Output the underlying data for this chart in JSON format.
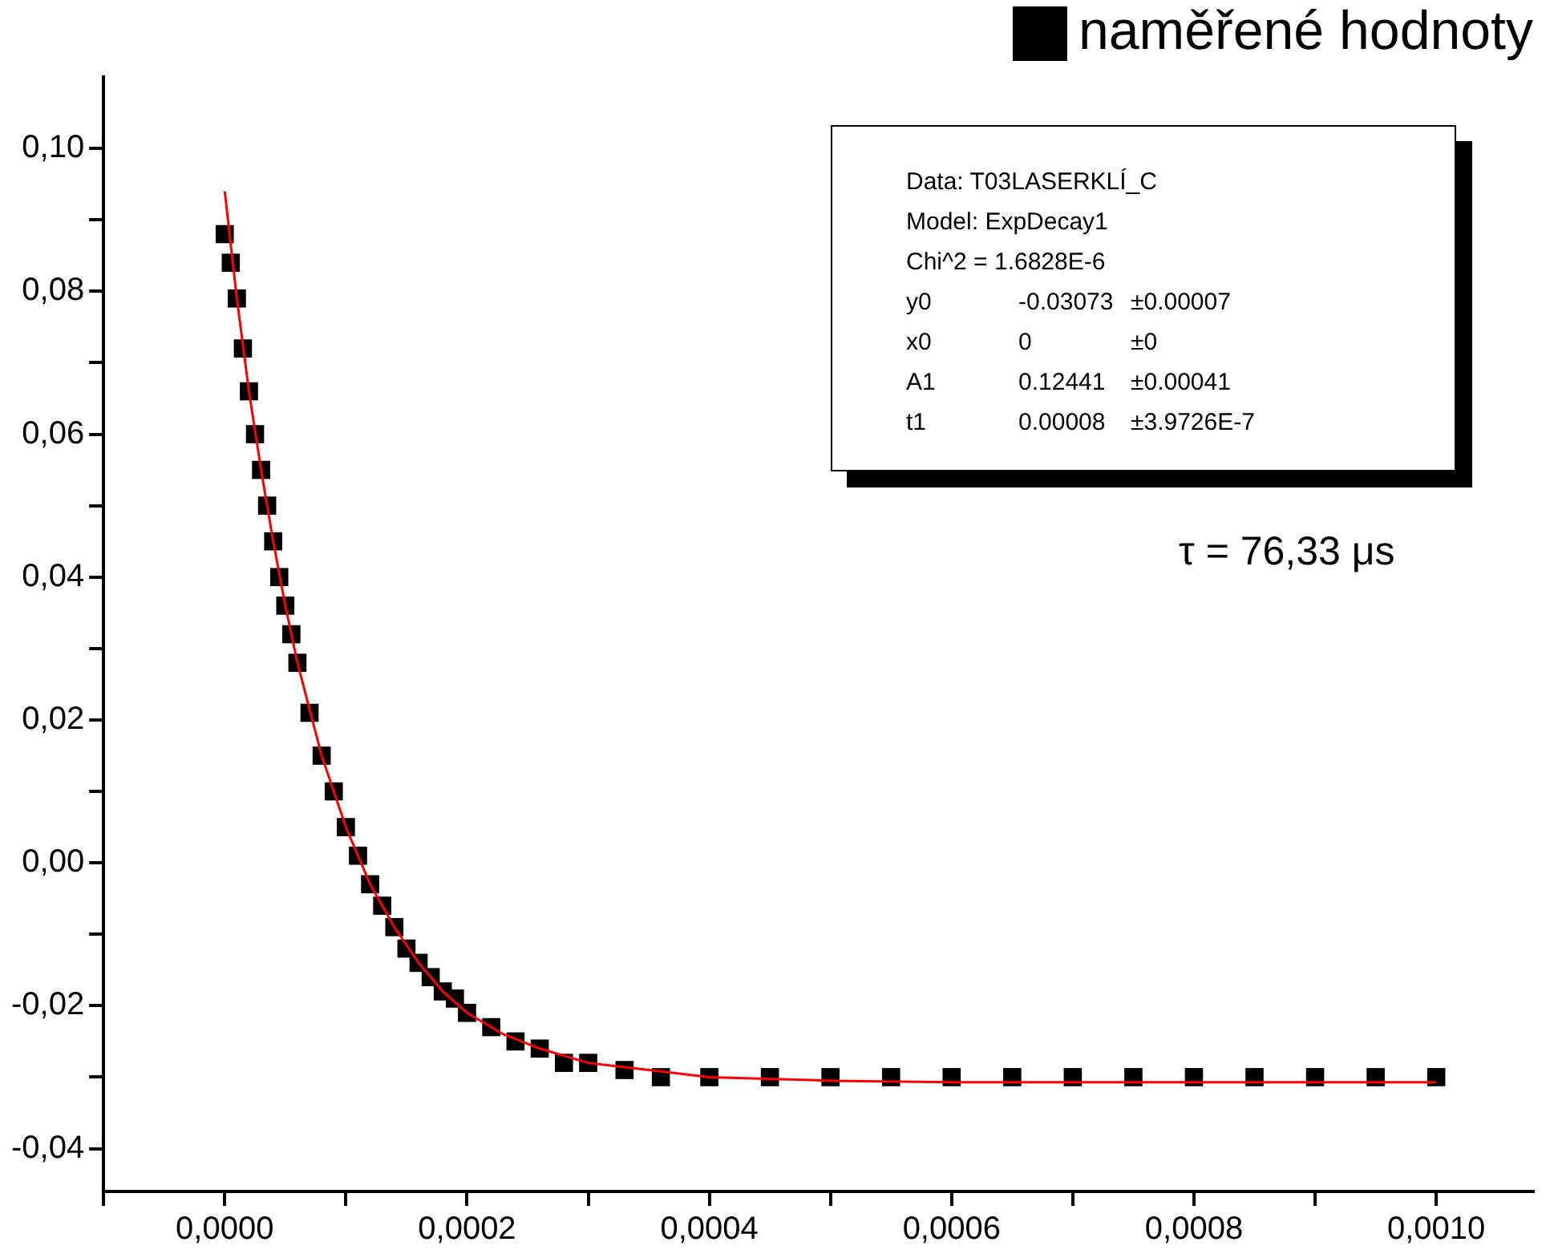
{
  "chart_data": {
    "type": "scatter",
    "legend": "top right",
    "marker": "square",
    "xlim": [
      -0.0001,
      0.00108
    ],
    "ylim": [
      -0.046,
      0.11
    ],
    "xticks": [
      {
        "value": -0.0001,
        "label": null
      },
      {
        "value": 0,
        "label": "0,0000"
      },
      {
        "value": 0.0001,
        "label": null
      },
      {
        "value": 0.0002,
        "label": "0,0002"
      },
      {
        "value": 0.0003,
        "label": null
      },
      {
        "value": 0.0004,
        "label": "0,0004"
      },
      {
        "value": 0.0005,
        "label": null
      },
      {
        "value": 0.0006,
        "label": "0,0006"
      },
      {
        "value": 0.0007,
        "label": null
      },
      {
        "value": 0.0008,
        "label": "0,0008"
      },
      {
        "value": 0.0009,
        "label": null
      },
      {
        "value": 0.001,
        "label": "0,0010"
      }
    ],
    "yticks": [
      {
        "value": -0.04,
        "label": "-0,04"
      },
      {
        "value": -0.03,
        "label": null
      },
      {
        "value": -0.02,
        "label": "-0,02"
      },
      {
        "value": -0.01,
        "label": null
      },
      {
        "value": 0,
        "label": "0,00"
      },
      {
        "value": 0.01,
        "label": null
      },
      {
        "value": 0.02,
        "label": "0,02"
      },
      {
        "value": 0.03,
        "label": null
      },
      {
        "value": 0.04,
        "label": "0,04"
      },
      {
        "value": 0.05,
        "label": null
      },
      {
        "value": 0.06,
        "label": "0,06"
      },
      {
        "value": 0.07,
        "label": null
      },
      {
        "value": 0.08,
        "label": "0,08"
      },
      {
        "value": 0.09,
        "label": null
      },
      {
        "value": 0.1,
        "label": "0,10"
      }
    ],
    "annotations": [
      "Data: T03LASERKLÍ_C",
      "Model: ExpDecay1",
      "Chi^2 = 1.6828E-6",
      "y0\t-0.03073\t±0.00007",
      "x0\t0\t±0",
      "A1\t0.12441\t±0.00041",
      "t1\t0.00008\t±3.9726E-7",
      "τ = 76,33 μs"
    ],
    "series": [
      {
        "name": "naměřené hodnoty",
        "color": "#000000",
        "x": [
          0,
          5e-06,
          1e-05,
          1.5e-05,
          2e-05,
          2.5e-05,
          3e-05,
          3.5e-05,
          4e-05,
          4.5e-05,
          5e-05,
          5.5e-05,
          6e-05,
          7e-05,
          8e-05,
          9e-05,
          0.0001,
          0.00011,
          0.00012,
          0.00013,
          0.00014,
          0.00015,
          0.00016,
          0.00017,
          0.00018,
          0.00019,
          0.0002,
          0.00022,
          0.00024,
          0.00026,
          0.00028,
          0.0003,
          0.00033,
          0.00036,
          0.0004,
          0.00045,
          0.0005,
          0.00055,
          0.0006,
          0.00065,
          0.0007,
          0.00075,
          0.0008,
          0.00085,
          0.0009,
          0.00095,
          0.001
        ],
        "values": [
          0.088,
          0.084,
          0.079,
          0.072,
          0.066,
          0.06,
          0.055,
          0.05,
          0.045,
          0.04,
          0.036,
          0.032,
          0.028,
          0.021,
          0.015,
          0.01,
          0.005,
          0.001,
          -0.003,
          -0.006,
          -0.009,
          -0.012,
          -0.014,
          -0.016,
          -0.018,
          -0.019,
          -0.021,
          -0.023,
          -0.025,
          -0.026,
          -0.028,
          -0.028,
          -0.029,
          -0.03,
          -0.03,
          -0.03,
          -0.03,
          -0.03,
          -0.03,
          -0.03,
          -0.03,
          -0.03,
          -0.03,
          -0.03,
          -0.03,
          -0.03,
          -0.03
        ]
      },
      {
        "type": "line",
        "marker": "none",
        "line_style": "solid",
        "color": "#ff0000",
        "x": [
          0,
          1e-05,
          2e-05,
          3e-05,
          4e-05,
          5e-05,
          6e-05,
          8e-05,
          0.0001,
          0.00012,
          0.00014,
          0.00016,
          0.00018,
          0.0002,
          0.00023,
          0.00026,
          0.0003,
          0.00035,
          0.0004,
          0.0005,
          0.0006,
          0.0008,
          0.001
        ],
        "values": [
          0.094,
          0.079,
          0.066,
          0.055,
          0.045,
          0.036,
          0.028,
          0.015,
          0.005,
          -0.003,
          -0.009,
          -0.014,
          -0.018,
          -0.021,
          -0.024,
          -0.026,
          -0.028,
          -0.029,
          -0.03,
          -0.0305,
          -0.0307,
          -0.0307,
          -0.0307
        ]
      }
    ]
  }
}
